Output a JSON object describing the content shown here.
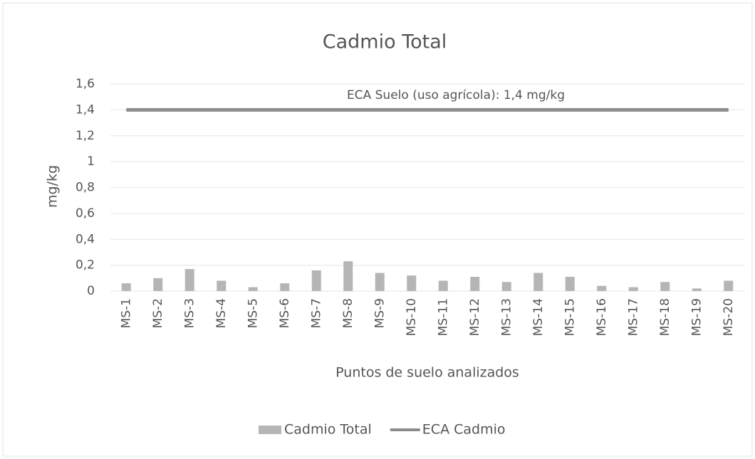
{
  "chart_data": {
    "type": "bar",
    "title": "Cadmio Total",
    "x_label": "Puntos de suelo analizados",
    "y_label": "mg/kg",
    "annotation": "ECA Suelo (uso agrícola): 1,4 mg/kg",
    "categories": [
      "MS-1",
      "MS-2",
      "MS-3",
      "MS-4",
      "MS-5",
      "MS-6",
      "MS-7",
      "MS-8",
      "MS-9",
      "MS-10",
      "MS-11",
      "MS-12",
      "MS-13",
      "MS-14",
      "MS-15",
      "MS-16",
      "MS-17",
      "MS-18",
      "MS-19",
      "MS-20"
    ],
    "series": [
      {
        "name": "Cadmio Total",
        "type": "bar",
        "color": "#b5b5b5",
        "values": [
          0.06,
          0.1,
          0.17,
          0.08,
          0.03,
          0.06,
          0.16,
          0.23,
          0.14,
          0.12,
          0.08,
          0.11,
          0.07,
          0.14,
          0.11,
          0.04,
          0.03,
          0.07,
          0.02,
          0.08
        ]
      },
      {
        "name": "ECA Cadmio",
        "type": "line",
        "color": "#8c8c8c",
        "values": [
          1.4,
          1.4,
          1.4,
          1.4,
          1.4,
          1.4,
          1.4,
          1.4,
          1.4,
          1.4,
          1.4,
          1.4,
          1.4,
          1.4,
          1.4,
          1.4,
          1.4,
          1.4,
          1.4,
          1.4
        ]
      }
    ],
    "ylim": [
      0,
      1.6
    ],
    "yticks": [
      0,
      {
        "value": 0.2,
        "label": "0,2"
      },
      {
        "value": 0.4,
        "label": "0,4"
      },
      {
        "value": 0.6,
        "label": "0,6"
      },
      {
        "value": 0.8,
        "label": "0,8"
      },
      1,
      {
        "value": 1.2,
        "label": "1,2"
      },
      {
        "value": 1.4,
        "label": "1,4"
      },
      {
        "value": 1.6,
        "label": "1,6"
      }
    ],
    "grid": true,
    "legend": "bottom"
  }
}
